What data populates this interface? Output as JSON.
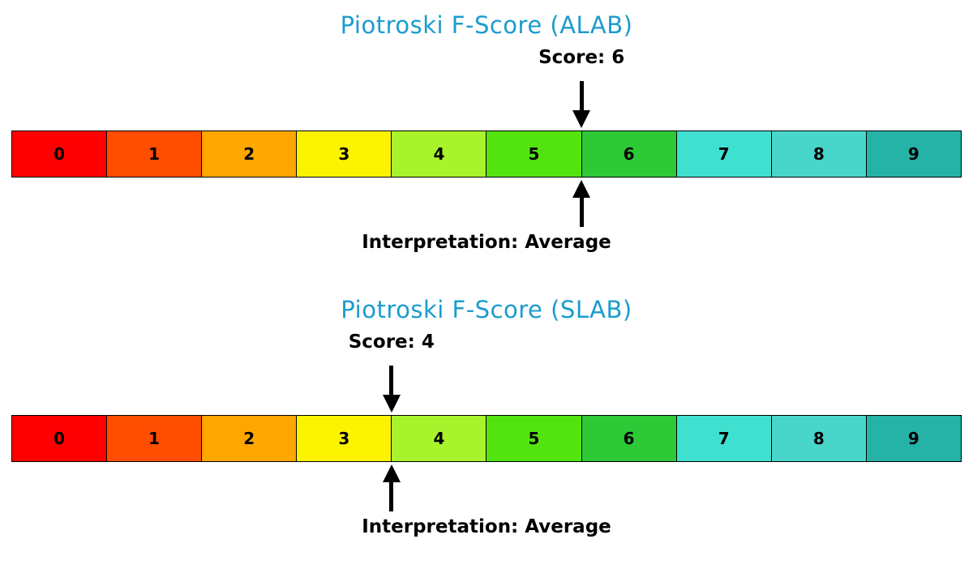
{
  "styles": {
    "title_color": "#1b9ccd",
    "text_color": "#000000",
    "arrow_color": "#000000",
    "background_color": "#ffffff"
  },
  "chart_data": [
    {
      "type": "bar",
      "subtype": "score-scale",
      "title": "Piotroski F-Score (ALAB)",
      "score": 6,
      "score_label": "Score: 6",
      "interpretation_label": "Interpretation: Average",
      "categories": [
        "0",
        "1",
        "2",
        "3",
        "4",
        "5",
        "6",
        "7",
        "8",
        "9"
      ],
      "cell_colors": [
        "#FF0000",
        "#FF4E00",
        "#FFA600",
        "#FCF300",
        "#A8F32C",
        "#53E410",
        "#2DC937",
        "#40E0D0",
        "#48D6CB",
        "#26B3A7"
      ],
      "axis_range": [
        0,
        10
      ],
      "grid": false,
      "legend": false
    },
    {
      "type": "bar",
      "subtype": "score-scale",
      "title": "Piotroski F-Score (SLAB)",
      "score": 4,
      "score_label": "Score: 4",
      "interpretation_label": "Interpretation: Average",
      "categories": [
        "0",
        "1",
        "2",
        "3",
        "4",
        "5",
        "6",
        "7",
        "8",
        "9"
      ],
      "cell_colors": [
        "#FF0000",
        "#FF4E00",
        "#FFA600",
        "#FCF300",
        "#A8F32C",
        "#53E410",
        "#2DC937",
        "#40E0D0",
        "#48D6CB",
        "#26B3A7"
      ],
      "axis_range": [
        0,
        10
      ],
      "grid": false,
      "legend": false
    }
  ]
}
